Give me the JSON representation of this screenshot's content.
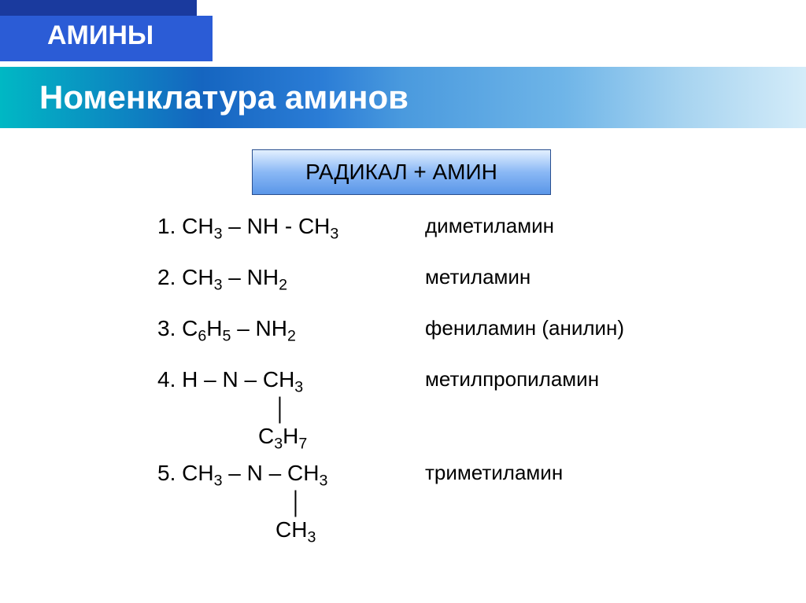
{
  "header": {
    "title": "АМИНЫ",
    "subtitle": "Номенклатура аминов",
    "formula_rule": "РАДИКАЛ + АМИН"
  },
  "items": [
    {
      "num": "1.",
      "formula_html": "CH<sub>3</sub> – NH - CH<sub>3</sub>",
      "name": "диметиламин"
    },
    {
      "num": "2.",
      "formula_html": "CH<sub>3</sub> – NH<sub>2</sub>",
      "name": "метиламин"
    },
    {
      "num": "3.",
      "formula_html": "C<sub>6</sub>H<sub>5</sub> – NH<sub>2</sub>",
      "name": "фениламин (анилин)"
    },
    {
      "num": "4.",
      "formula_html": "H – N – CH<sub>3</sub>",
      "branch_html": "C<sub>3</sub>H<sub>7</sub>",
      "name": "метилпропиламин"
    },
    {
      "num": "5.",
      "formula_html": "CH<sub>3</sub> – N – CH<sub>3</sub>",
      "branch_html": "CH<sub>3</sub>",
      "name": "триметиламин"
    }
  ],
  "colors": {
    "header_dark": "#1a3a9e",
    "header_light": "#2b5cd6",
    "gradient_start": "#00b8c4",
    "gradient_end": "#d4ecf9",
    "box_border": "#2a5090",
    "text": "#000000",
    "title_text": "#ffffff"
  },
  "typography": {
    "title_fontsize": 34,
    "subtitle_fontsize": 42,
    "body_fontsize": 28,
    "name_fontsize": 26
  }
}
